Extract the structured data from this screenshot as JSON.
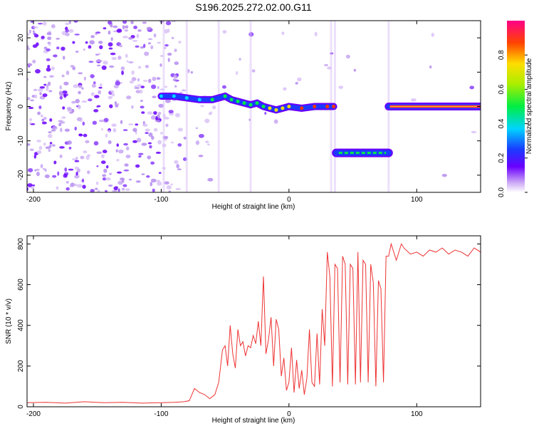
{
  "title": "S196.2025.272.02.00.G11",
  "chart_data": [
    {
      "type": "heatmap",
      "xlabel": "Height of straight line (km)",
      "ylabel": "Frequency (Hz)",
      "xlim": [
        -205,
        150
      ],
      "ylim": [
        -25,
        25
      ],
      "xticks": [
        -200,
        -100,
        0,
        100
      ],
      "yticks": [
        -20,
        -10,
        0,
        10,
        20
      ],
      "colorbar": {
        "label": "Normalized spectral amplitude",
        "range": [
          0,
          1
        ],
        "ticks": [
          0.0,
          0.2,
          0.4,
          0.6,
          0.8
        ]
      },
      "track_segments": [
        {
          "x": [
            -100,
            35
          ],
          "points": [
            [
              -100,
              3
            ],
            [
              -90,
              3
            ],
            [
              -80,
              2.5
            ],
            [
              -70,
              2
            ],
            [
              -60,
              2
            ],
            [
              -50,
              3
            ],
            [
              -45,
              2
            ],
            [
              -40,
              1.5
            ],
            [
              -35,
              1
            ],
            [
              -30,
              0.5
            ],
            [
              -25,
              1
            ],
            [
              -20,
              0
            ],
            [
              -15,
              -0.5
            ],
            [
              -10,
              -1
            ],
            [
              -5,
              -0.5
            ],
            [
              0,
              0
            ],
            [
              10,
              -0.5
            ],
            [
              20,
              0
            ],
            [
              30,
              0
            ],
            [
              35,
              0
            ]
          ]
        },
        {
          "x": [
            37,
            78
          ],
          "freq": -13.5
        },
        {
          "x": [
            78,
            150
          ],
          "freq": 0
        }
      ]
    },
    {
      "type": "line",
      "xlabel": "Height of straight line (km)",
      "ylabel": "SNR (10 * v/v)",
      "xlim": [
        -205,
        150
      ],
      "ylim": [
        0,
        840
      ],
      "xticks": [
        -200,
        -100,
        0,
        100
      ],
      "yticks": [
        0,
        200,
        400,
        600,
        800
      ],
      "series": [
        {
          "color": "#ee3333",
          "x": [
            -205,
            -190,
            -175,
            -160,
            -145,
            -130,
            -115,
            -100,
            -90,
            -82,
            -78,
            -74,
            -70,
            -66,
            -62,
            -58,
            -55,
            -52,
            -50,
            -48,
            -46,
            -44,
            -42,
            -40,
            -38,
            -36,
            -34,
            -32,
            -30,
            -28,
            -26,
            -24,
            -22,
            -20,
            -18,
            -16,
            -14,
            -12,
            -10,
            -8,
            -6,
            -4,
            -2,
            0,
            2,
            4,
            6,
            8,
            10,
            12,
            14,
            16,
            18,
            20,
            22,
            24,
            26,
            28,
            30,
            32,
            34,
            36,
            38,
            40,
            42,
            44,
            46,
            48,
            50,
            52,
            54,
            56,
            58,
            60,
            62,
            64,
            66,
            68,
            70,
            72,
            74,
            76,
            78,
            80,
            82,
            84,
            86,
            88,
            90,
            95,
            100,
            105,
            110,
            115,
            120,
            125,
            130,
            135,
            140,
            145,
            150
          ],
          "values": [
            20,
            22,
            18,
            25,
            20,
            22,
            18,
            20,
            22,
            25,
            30,
            90,
            70,
            60,
            40,
            60,
            120,
            280,
            300,
            200,
            400,
            260,
            190,
            380,
            300,
            320,
            250,
            300,
            290,
            350,
            310,
            420,
            300,
            640,
            260,
            330,
            440,
            200,
            430,
            380,
            150,
            240,
            80,
            120,
            290,
            70,
            230,
            90,
            180,
            60,
            140,
            380,
            120,
            100,
            360,
            110,
            480,
            300,
            760,
            640,
            100,
            700,
            680,
            120,
            740,
            700,
            110,
            700,
            680,
            110,
            760,
            120,
            720,
            700,
            120,
            700,
            610,
            100,
            620,
            580,
            120,
            740,
            740,
            800,
            760,
            720,
            760,
            800,
            780,
            750,
            760,
            740,
            770,
            760,
            780,
            750,
            770,
            760,
            740,
            780,
            760
          ]
        }
      ]
    }
  ]
}
